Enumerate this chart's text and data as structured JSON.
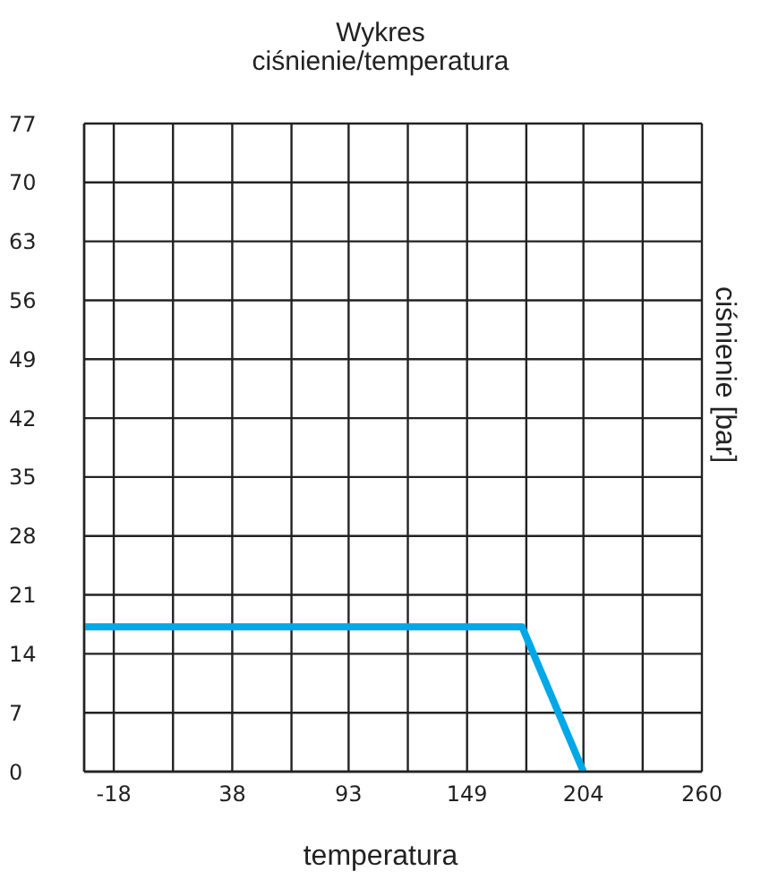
{
  "chart_data": {
    "type": "line",
    "title": "Wykres",
    "subtitle": "ciśnienie/temperatura",
    "xlabel": "temperatura",
    "ylabel": "ciśnienie [bar]",
    "x": [
      -32,
      175,
      204
    ],
    "series": [
      {
        "color": "#00a8e8",
        "values": [
          17.2,
          17.2,
          0
        ]
      }
    ],
    "xlim": [
      -32,
      260
    ],
    "xticks": [
      -18,
      {
        "value": 10,
        "label": null
      },
      38,
      {
        "value": 66,
        "label": null
      },
      93,
      {
        "value": 121,
        "label": null
      },
      149,
      {
        "value": 177,
        "label": null
      },
      204,
      {
        "value": 232,
        "label": null
      },
      260
    ],
    "ylim": [
      0,
      77
    ],
    "yticks": [
      0,
      7,
      14,
      21,
      28,
      35,
      42,
      49,
      56,
      63,
      70,
      77
    ],
    "grid": true,
    "legend": false,
    "marker": "none",
    "line_style": "solid"
  }
}
